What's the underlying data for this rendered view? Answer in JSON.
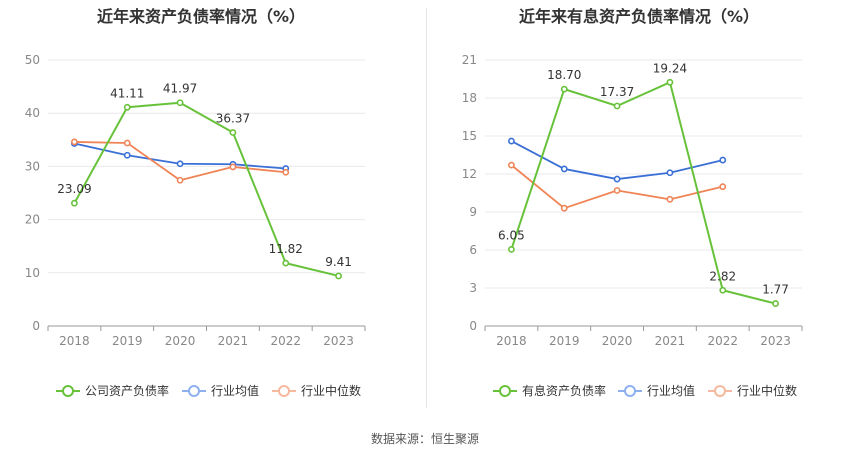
{
  "footer": {
    "source_label": "数据来源：恒生聚源"
  },
  "colors": {
    "company": "#67c23a",
    "avg": "#3a6fd6",
    "median": "#ef8456",
    "legend_avg": "#8eb0f0",
    "legend_median": "#f5b99e"
  },
  "chart_data": [
    {
      "type": "line",
      "title": "近年来资产负债率情况（%）",
      "categories": [
        "2018",
        "2019",
        "2020",
        "2021",
        "2022",
        "2023"
      ],
      "ylim": [
        0,
        50
      ],
      "yticks": [
        "0",
        "10",
        "20",
        "30",
        "40",
        "50"
      ],
      "grid": true,
      "legend_position": "bottom",
      "series": [
        {
          "name": "公司资产负债率",
          "key": "company",
          "values": [
            23.09,
            41.11,
            41.97,
            36.37,
            11.82,
            9.41
          ],
          "labels": [
            "23.09",
            "41.11",
            "41.97",
            "36.37",
            "11.82",
            "9.41"
          ]
        },
        {
          "name": "行业均值",
          "key": "avg",
          "values": [
            34.3,
            32.1,
            30.5,
            30.4,
            29.6,
            null
          ]
        },
        {
          "name": "行业中位数",
          "key": "median",
          "values": [
            34.6,
            34.4,
            27.4,
            29.9,
            28.9,
            null
          ]
        }
      ]
    },
    {
      "type": "line",
      "title": "近年来有息资产负债率情况（%）",
      "categories": [
        "2018",
        "2019",
        "2020",
        "2021",
        "2022",
        "2023"
      ],
      "ylim": [
        0,
        21
      ],
      "yticks": [
        "0",
        "3",
        "6",
        "9",
        "12",
        "15",
        "18",
        "21"
      ],
      "grid": true,
      "legend_position": "bottom",
      "series": [
        {
          "name": "有息资产负债率",
          "key": "company",
          "values": [
            6.05,
            18.7,
            17.37,
            19.24,
            2.82,
            1.77
          ],
          "labels": [
            "6.05",
            "18.70",
            "17.37",
            "19.24",
            "2.82",
            "1.77"
          ]
        },
        {
          "name": "行业均值",
          "key": "avg",
          "values": [
            14.6,
            12.4,
            11.6,
            12.1,
            13.1,
            null
          ]
        },
        {
          "name": "行业中位数",
          "key": "median",
          "values": [
            12.7,
            9.3,
            10.7,
            10.0,
            11.0,
            null
          ]
        }
      ]
    }
  ]
}
